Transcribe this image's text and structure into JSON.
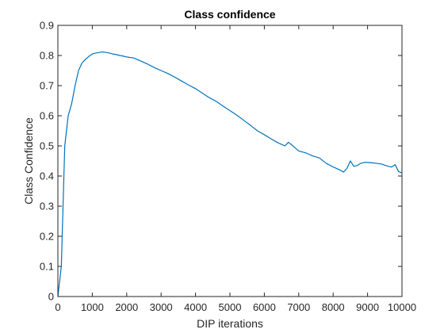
{
  "chart_data": {
    "type": "line",
    "title": "Class confidence",
    "xlabel": "DIP iterations",
    "ylabel": "Class Confidence",
    "xlim": [
      0,
      10000
    ],
    "ylim": [
      0,
      0.9
    ],
    "xticks": [
      0,
      1000,
      2000,
      3000,
      4000,
      5000,
      6000,
      7000,
      8000,
      9000,
      10000
    ],
    "yticks": [
      0,
      0.1,
      0.2,
      0.3,
      0.4,
      0.5,
      0.6,
      0.7,
      0.8,
      0.9
    ],
    "grid": false,
    "box": true,
    "series": [
      {
        "color": "#0072bd",
        "x": [
          0,
          100,
          200,
          300,
          400,
          500,
          600,
          700,
          800,
          900,
          1000,
          1100,
          1200,
          1300,
          1400,
          1500,
          1600,
          1700,
          1800,
          1900,
          2000,
          2200,
          2400,
          2600,
          2800,
          3000,
          3200,
          3400,
          3600,
          3800,
          4000,
          4200,
          4400,
          4600,
          4800,
          5000,
          5200,
          5400,
          5600,
          5800,
          6000,
          6200,
          6400,
          6600,
          6700,
          6800,
          7000,
          7200,
          7400,
          7600,
          7800,
          8000,
          8200,
          8300,
          8400,
          8500,
          8600,
          8700,
          8800,
          8900,
          9000,
          9200,
          9400,
          9600,
          9700,
          9800,
          9900,
          10000
        ],
        "y": [
          0.0,
          0.1,
          0.5,
          0.6,
          0.64,
          0.7,
          0.75,
          0.775,
          0.787,
          0.797,
          0.805,
          0.808,
          0.81,
          0.812,
          0.81,
          0.808,
          0.805,
          0.803,
          0.8,
          0.798,
          0.795,
          0.792,
          0.782,
          0.772,
          0.76,
          0.75,
          0.74,
          0.728,
          0.715,
          0.702,
          0.69,
          0.675,
          0.66,
          0.648,
          0.632,
          0.617,
          0.602,
          0.585,
          0.568,
          0.55,
          0.537,
          0.523,
          0.51,
          0.5,
          0.512,
          0.503,
          0.483,
          0.477,
          0.467,
          0.46,
          0.442,
          0.43,
          0.42,
          0.413,
          0.425,
          0.45,
          0.432,
          0.435,
          0.442,
          0.445,
          0.445,
          0.443,
          0.44,
          0.432,
          0.43,
          0.438,
          0.415,
          0.41
        ]
      }
    ]
  }
}
